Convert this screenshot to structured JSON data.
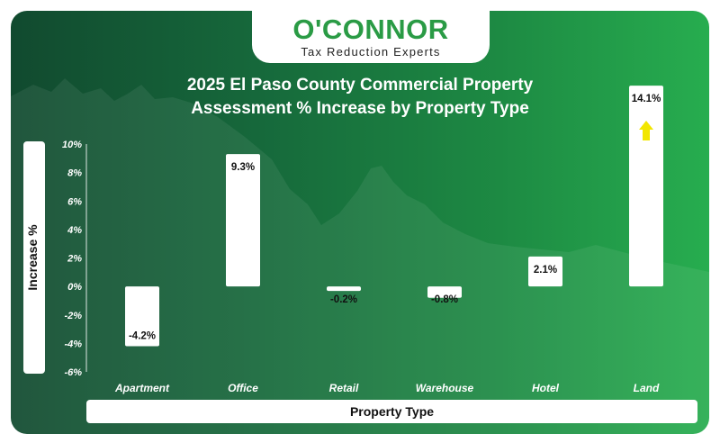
{
  "brand": {
    "name": "O'CONNOR",
    "tagline": "Tax Reduction Experts"
  },
  "colors": {
    "bar": "#ffffff",
    "logo_green": "#2a9b45",
    "arrow": "#f2e600",
    "axis_text": "#ffffff"
  },
  "chart_data": {
    "type": "bar",
    "title_lines": [
      "2025 El Paso County Commercial Property",
      "Assessment % Increase by Property Type"
    ],
    "xlabel": "Property Type",
    "ylabel": "Increase %",
    "categories": [
      "Apartment",
      "Office",
      "Retail",
      "Warehouse",
      "Hotel",
      "Land"
    ],
    "values": [
      -4.2,
      9.3,
      -0.2,
      -0.8,
      2.1,
      14.1
    ],
    "data_labels": [
      "-4.2%",
      "9.3%",
      "-0.2%",
      "-0.8%",
      "2.1%",
      "14.1%"
    ],
    "ylim": [
      -6,
      10
    ],
    "yticks": [
      10,
      8,
      6,
      4,
      2,
      0,
      -2,
      -4,
      -6
    ],
    "ytick_labels": [
      "10%",
      "8%",
      "6%",
      "4%",
      "2%",
      "0%",
      "-2%",
      "-4%",
      "-6%"
    ],
    "grid": false,
    "legend": "none",
    "annotation": "up-arrow above Land bar"
  }
}
